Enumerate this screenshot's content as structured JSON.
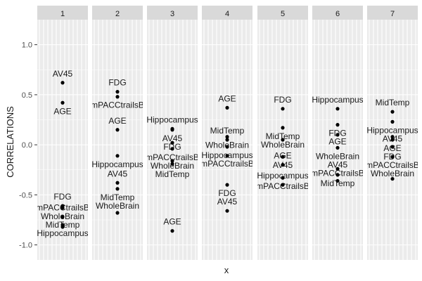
{
  "chart_data": {
    "type": "scatter",
    "xlabel": "x",
    "ylabel": "CORRELATIONS",
    "ylim": [
      -1.15,
      1.25
    ],
    "y_ticks": [
      1.0,
      0.5,
      0.0,
      -0.5,
      -1.0
    ],
    "y_tick_labels": [
      "1.0",
      "0.5",
      "0.0",
      "-0.5",
      "-1.0"
    ],
    "grid": true,
    "facets": [
      {
        "label": "1",
        "points": [
          {
            "name": "AV45",
            "y": 0.62
          },
          {
            "name": "AGE",
            "y": 0.42
          },
          {
            "name": "FDG",
            "y": -0.61
          },
          {
            "name": "WholeBrain",
            "y": -0.63
          },
          {
            "name": "mPACCtrailsB",
            "y": -0.72
          },
          {
            "name": "Hippocampus",
            "y": -0.8
          },
          {
            "name": "MidTemp",
            "y": -0.82
          }
        ]
      },
      {
        "label": "2",
        "points": [
          {
            "name": "FDG",
            "y": 0.53
          },
          {
            "name": "mPACCtrailsB",
            "y": 0.48
          },
          {
            "name": "AGE",
            "y": 0.15
          },
          {
            "name": "Hippocampus",
            "y": -0.11
          },
          {
            "name": "AV45",
            "y": -0.38
          },
          {
            "name": "MidTemp",
            "y": -0.44
          },
          {
            "name": "WholeBrain",
            "y": -0.68
          }
        ]
      },
      {
        "label": "3",
        "points": [
          {
            "name": "Hippocampus",
            "y": 0.16
          },
          {
            "name": "AV45",
            "y": 0.15
          },
          {
            "name": "FDG",
            "y": 0.02
          },
          {
            "name": "mPACCtrailsB",
            "y": -0.04
          },
          {
            "name": "WholeBrain",
            "y": -0.16
          },
          {
            "name": "MidTemp",
            "y": -0.19
          },
          {
            "name": "AGE",
            "y": -0.86
          }
        ]
      },
      {
        "label": "4",
        "points": [
          {
            "name": "AGE",
            "y": 0.37
          },
          {
            "name": "WholeBrain",
            "y": 0.08
          },
          {
            "name": "MidTemp",
            "y": 0.05
          },
          {
            "name": "Hippocampus",
            "y": -0.02
          },
          {
            "name": "mPACCtrailsB",
            "y": -0.11
          },
          {
            "name": "FDG",
            "y": -0.4
          },
          {
            "name": "AV45",
            "y": -0.66
          }
        ]
      },
      {
        "label": "5",
        "points": [
          {
            "name": "FDG",
            "y": 0.36
          },
          {
            "name": "MidTemp",
            "y": 0.17
          },
          {
            "name": "WholeBrain",
            "y": 0.05
          },
          {
            "name": "AV45",
            "y": -0.12
          },
          {
            "name": "AGE",
            "y": -0.2
          },
          {
            "name": "mPACCtrailsB",
            "y": -0.33
          },
          {
            "name": "Hippocampus",
            "y": -0.4
          }
        ]
      },
      {
        "label": "6",
        "points": [
          {
            "name": "Hippocampus",
            "y": 0.36
          },
          {
            "name": "FDG",
            "y": 0.2
          },
          {
            "name": "AGE",
            "y": 0.1
          },
          {
            "name": "WholeBrain",
            "y": -0.03
          },
          {
            "name": "AV45",
            "y": -0.24
          },
          {
            "name": "MidTemp",
            "y": -0.3
          },
          {
            "name": "mPACCtrailsB",
            "y": -0.36
          }
        ]
      },
      {
        "label": "7",
        "points": [
          {
            "name": "MidTemp",
            "y": 0.33
          },
          {
            "name": "Hippocampus",
            "y": 0.23
          },
          {
            "name": "AV45",
            "y": 0.08
          },
          {
            "name": "AGE",
            "y": 0.05
          },
          {
            "name": "FDG",
            "y": -0.02
          },
          {
            "name": "mPACCtrailsB",
            "y": -0.12
          },
          {
            "name": "WholeBrain",
            "y": -0.34
          }
        ]
      }
    ]
  },
  "colors": {
    "panel_bg": "#ebebeb",
    "strip_bg": "#d9d9d9",
    "grid_major": "#ffffff",
    "point": "#000000",
    "text": "#1a1a1a"
  }
}
